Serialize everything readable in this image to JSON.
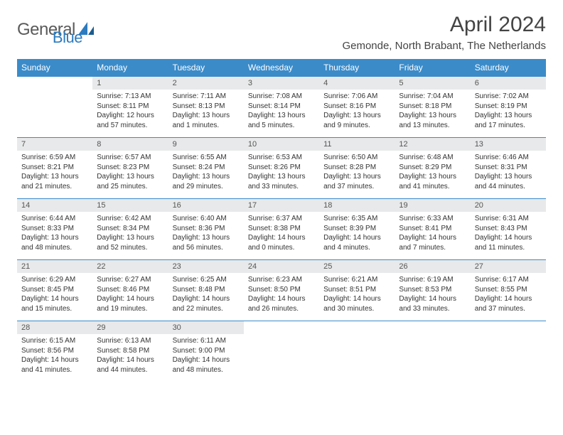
{
  "logo": {
    "text1": "General",
    "text2": "Blue"
  },
  "title": "April 2024",
  "location": "Gemonde, North Brabant, The Netherlands",
  "colors": {
    "header_bg": "#3b8bc9",
    "header_text": "#ffffff",
    "daynum_bg": "#e8e9ea",
    "daynum_text": "#555555",
    "border": "#3b8bc9",
    "body_text": "#333333",
    "page_bg": "#ffffff",
    "logo_gray": "#5a5a5a",
    "logo_blue": "#2b7bbf"
  },
  "fonts": {
    "title_size": 30,
    "location_size": 15,
    "dayhead_size": 12,
    "daynum_size": 11,
    "content_size": 10
  },
  "layout": {
    "columns": 7,
    "rows": 5,
    "first_weekday_offset": 1
  },
  "weekdays": [
    "Sunday",
    "Monday",
    "Tuesday",
    "Wednesday",
    "Thursday",
    "Friday",
    "Saturday"
  ],
  "days": [
    {
      "n": "1",
      "sr": "Sunrise: 7:13 AM",
      "ss": "Sunset: 8:11 PM",
      "dl": "Daylight: 12 hours and 57 minutes."
    },
    {
      "n": "2",
      "sr": "Sunrise: 7:11 AM",
      "ss": "Sunset: 8:13 PM",
      "dl": "Daylight: 13 hours and 1 minutes."
    },
    {
      "n": "3",
      "sr": "Sunrise: 7:08 AM",
      "ss": "Sunset: 8:14 PM",
      "dl": "Daylight: 13 hours and 5 minutes."
    },
    {
      "n": "4",
      "sr": "Sunrise: 7:06 AM",
      "ss": "Sunset: 8:16 PM",
      "dl": "Daylight: 13 hours and 9 minutes."
    },
    {
      "n": "5",
      "sr": "Sunrise: 7:04 AM",
      "ss": "Sunset: 8:18 PM",
      "dl": "Daylight: 13 hours and 13 minutes."
    },
    {
      "n": "6",
      "sr": "Sunrise: 7:02 AM",
      "ss": "Sunset: 8:19 PM",
      "dl": "Daylight: 13 hours and 17 minutes."
    },
    {
      "n": "7",
      "sr": "Sunrise: 6:59 AM",
      "ss": "Sunset: 8:21 PM",
      "dl": "Daylight: 13 hours and 21 minutes."
    },
    {
      "n": "8",
      "sr": "Sunrise: 6:57 AM",
      "ss": "Sunset: 8:23 PM",
      "dl": "Daylight: 13 hours and 25 minutes."
    },
    {
      "n": "9",
      "sr": "Sunrise: 6:55 AM",
      "ss": "Sunset: 8:24 PM",
      "dl": "Daylight: 13 hours and 29 minutes."
    },
    {
      "n": "10",
      "sr": "Sunrise: 6:53 AM",
      "ss": "Sunset: 8:26 PM",
      "dl": "Daylight: 13 hours and 33 minutes."
    },
    {
      "n": "11",
      "sr": "Sunrise: 6:50 AM",
      "ss": "Sunset: 8:28 PM",
      "dl": "Daylight: 13 hours and 37 minutes."
    },
    {
      "n": "12",
      "sr": "Sunrise: 6:48 AM",
      "ss": "Sunset: 8:29 PM",
      "dl": "Daylight: 13 hours and 41 minutes."
    },
    {
      "n": "13",
      "sr": "Sunrise: 6:46 AM",
      "ss": "Sunset: 8:31 PM",
      "dl": "Daylight: 13 hours and 44 minutes."
    },
    {
      "n": "14",
      "sr": "Sunrise: 6:44 AM",
      "ss": "Sunset: 8:33 PM",
      "dl": "Daylight: 13 hours and 48 minutes."
    },
    {
      "n": "15",
      "sr": "Sunrise: 6:42 AM",
      "ss": "Sunset: 8:34 PM",
      "dl": "Daylight: 13 hours and 52 minutes."
    },
    {
      "n": "16",
      "sr": "Sunrise: 6:40 AM",
      "ss": "Sunset: 8:36 PM",
      "dl": "Daylight: 13 hours and 56 minutes."
    },
    {
      "n": "17",
      "sr": "Sunrise: 6:37 AM",
      "ss": "Sunset: 8:38 PM",
      "dl": "Daylight: 14 hours and 0 minutes."
    },
    {
      "n": "18",
      "sr": "Sunrise: 6:35 AM",
      "ss": "Sunset: 8:39 PM",
      "dl": "Daylight: 14 hours and 4 minutes."
    },
    {
      "n": "19",
      "sr": "Sunrise: 6:33 AM",
      "ss": "Sunset: 8:41 PM",
      "dl": "Daylight: 14 hours and 7 minutes."
    },
    {
      "n": "20",
      "sr": "Sunrise: 6:31 AM",
      "ss": "Sunset: 8:43 PM",
      "dl": "Daylight: 14 hours and 11 minutes."
    },
    {
      "n": "21",
      "sr": "Sunrise: 6:29 AM",
      "ss": "Sunset: 8:45 PM",
      "dl": "Daylight: 14 hours and 15 minutes."
    },
    {
      "n": "22",
      "sr": "Sunrise: 6:27 AM",
      "ss": "Sunset: 8:46 PM",
      "dl": "Daylight: 14 hours and 19 minutes."
    },
    {
      "n": "23",
      "sr": "Sunrise: 6:25 AM",
      "ss": "Sunset: 8:48 PM",
      "dl": "Daylight: 14 hours and 22 minutes."
    },
    {
      "n": "24",
      "sr": "Sunrise: 6:23 AM",
      "ss": "Sunset: 8:50 PM",
      "dl": "Daylight: 14 hours and 26 minutes."
    },
    {
      "n": "25",
      "sr": "Sunrise: 6:21 AM",
      "ss": "Sunset: 8:51 PM",
      "dl": "Daylight: 14 hours and 30 minutes."
    },
    {
      "n": "26",
      "sr": "Sunrise: 6:19 AM",
      "ss": "Sunset: 8:53 PM",
      "dl": "Daylight: 14 hours and 33 minutes."
    },
    {
      "n": "27",
      "sr": "Sunrise: 6:17 AM",
      "ss": "Sunset: 8:55 PM",
      "dl": "Daylight: 14 hours and 37 minutes."
    },
    {
      "n": "28",
      "sr": "Sunrise: 6:15 AM",
      "ss": "Sunset: 8:56 PM",
      "dl": "Daylight: 14 hours and 41 minutes."
    },
    {
      "n": "29",
      "sr": "Sunrise: 6:13 AM",
      "ss": "Sunset: 8:58 PM",
      "dl": "Daylight: 14 hours and 44 minutes."
    },
    {
      "n": "30",
      "sr": "Sunrise: 6:11 AM",
      "ss": "Sunset: 9:00 PM",
      "dl": "Daylight: 14 hours and 48 minutes."
    }
  ]
}
